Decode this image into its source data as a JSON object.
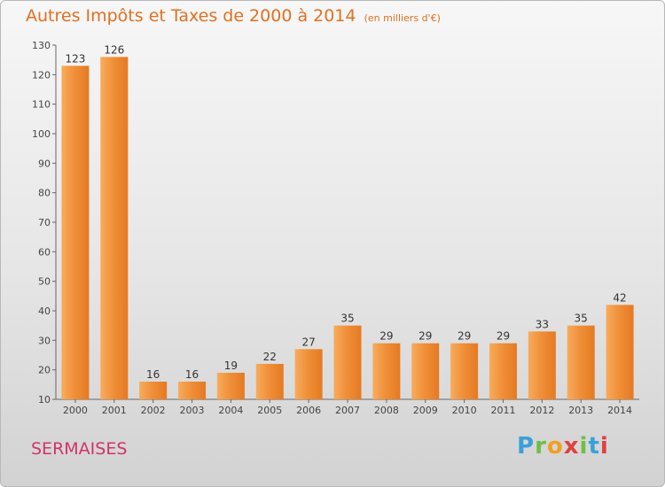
{
  "chart_data": {
    "type": "bar",
    "title": "Autres Impôts et Taxes de 2000 à 2014",
    "subtitle": "(en milliers d'€)",
    "xlabel": "",
    "ylabel": "",
    "categories": [
      "2000",
      "2001",
      "2002",
      "2003",
      "2004",
      "2005",
      "2006",
      "2007",
      "2008",
      "2009",
      "2010",
      "2011",
      "2012",
      "2013",
      "2014"
    ],
    "values": [
      123,
      126,
      16,
      16,
      19,
      22,
      27,
      35,
      29,
      29,
      29,
      29,
      33,
      35,
      42
    ],
    "ylim": [
      10,
      130
    ],
    "yticks": [
      10,
      20,
      30,
      40,
      50,
      60,
      70,
      80,
      90,
      100,
      110,
      120,
      130
    ],
    "grid": false,
    "legend": "none",
    "bar_color": "#f0903a",
    "bar_color_light": "#f7ac5c",
    "bar_color_dark": "#e57a22"
  },
  "commune": "SERMAISES",
  "logo": {
    "letters": [
      "P",
      "r",
      "o",
      "x",
      "i",
      "t",
      "i"
    ],
    "colors": [
      "#3aa0dc",
      "#6fbe44",
      "#f0a020",
      "#e04040",
      "#6fbe44",
      "#3aa0dc",
      "#e04040"
    ]
  }
}
